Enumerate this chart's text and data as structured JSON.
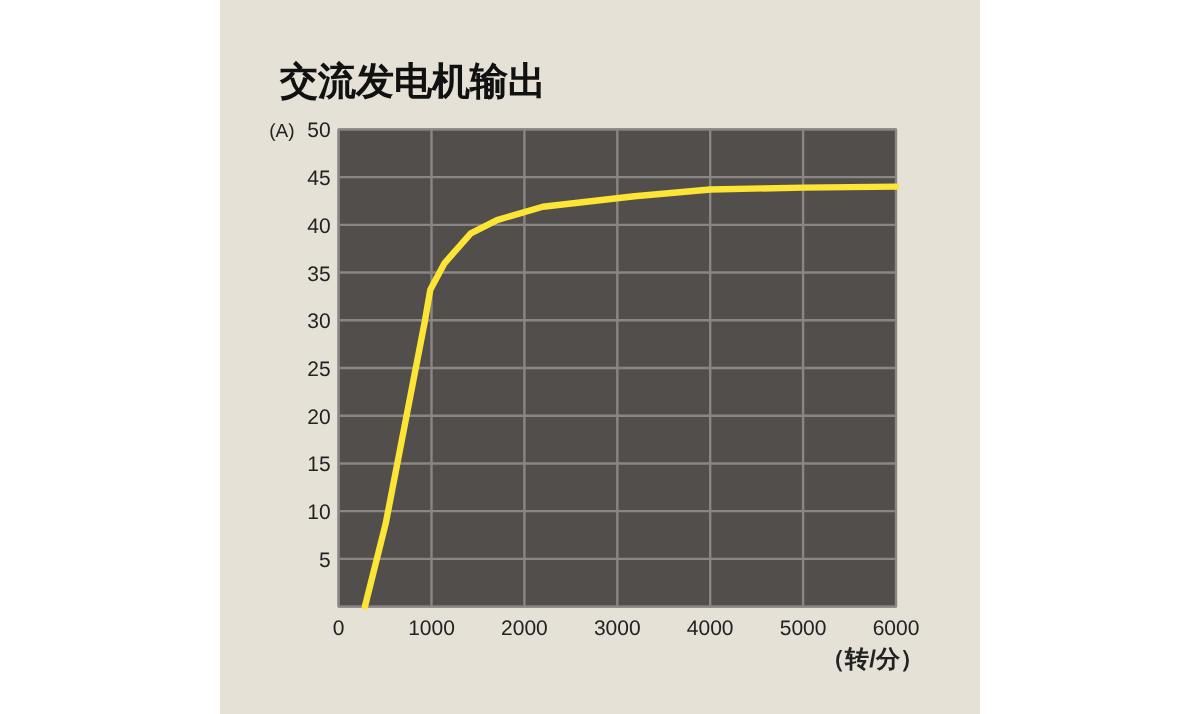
{
  "chart_data": {
    "type": "line",
    "title": "交流发电机输出",
    "xlabel": "（转/分）",
    "ylabel": "(A)",
    "x": [
      283,
      507,
      930,
      987,
      1141,
      1423,
      1705,
      2198,
      3186,
      4000,
      5000,
      6000
    ],
    "series": [
      {
        "color": "#fce534",
        "values": [
          0,
          8.7,
          30,
          33.2,
          36,
          39.1,
          40.5,
          41.9,
          43,
          43.7,
          43.9,
          44
        ]
      }
    ],
    "xlim": [
      0,
      6000
    ],
    "ylim": [
      0,
      50
    ],
    "xticks": [
      0,
      1000,
      2000,
      3000,
      4000,
      5000,
      6000
    ],
    "yticks": [
      {
        "value": 0,
        "label": null
      },
      5,
      10,
      15,
      20,
      25,
      30,
      35,
      40,
      45,
      50
    ],
    "grid": true,
    "marker": "none",
    "line_style": "solid"
  }
}
